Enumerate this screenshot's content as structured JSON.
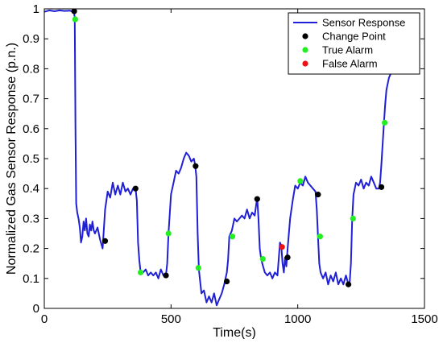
{
  "chart_data": {
    "type": "line",
    "title": "",
    "xlabel": "Time(s)",
    "ylabel": "Normalized Gas Sensor Response (p.n.)",
    "xlim": [
      0,
      1500
    ],
    "ylim": [
      0,
      1
    ],
    "xticks": [
      0,
      500,
      1000,
      1500
    ],
    "yticks": [
      0,
      0.1,
      0.2,
      0.3,
      0.4,
      0.5,
      0.6,
      0.7,
      0.8,
      0.9,
      1
    ],
    "grid": false,
    "legend_position": "top-right",
    "legend": [
      {
        "label": "Sensor Response",
        "kind": "line",
        "color": "#1f1fd6"
      },
      {
        "label": "Change Point",
        "kind": "marker",
        "color": "#000000"
      },
      {
        "label": "True Alarm",
        "kind": "marker",
        "color": "#22ee22"
      },
      {
        "label": "False Alarm",
        "kind": "marker",
        "color": "#ee1111"
      }
    ],
    "series": [
      {
        "name": "Sensor Response",
        "color": "#1f1fd6",
        "x": [
          0,
          20,
          40,
          60,
          80,
          100,
          115,
          118,
          120,
          123,
          126,
          130,
          135,
          140,
          145,
          150,
          155,
          160,
          165,
          170,
          175,
          180,
          185,
          190,
          195,
          200,
          210,
          220,
          230,
          240,
          250,
          260,
          270,
          280,
          290,
          300,
          310,
          320,
          330,
          340,
          350,
          360,
          365,
          370,
          375,
          380,
          390,
          400,
          410,
          420,
          430,
          440,
          450,
          460,
          470,
          480,
          485,
          490,
          500,
          510,
          520,
          530,
          540,
          550,
          560,
          570,
          580,
          590,
          595,
          600,
          605,
          610,
          620,
          630,
          640,
          650,
          660,
          670,
          680,
          690,
          700,
          710,
          715,
          720,
          725,
          730,
          740,
          750,
          760,
          770,
          780,
          790,
          800,
          810,
          820,
          830,
          840,
          845,
          850,
          855,
          860,
          870,
          880,
          890,
          900,
          910,
          920,
          930,
          935,
          940,
          945,
          950,
          955,
          960,
          970,
          980,
          990,
          1000,
          1010,
          1020,
          1030,
          1040,
          1050,
          1060,
          1070,
          1075,
          1080,
          1085,
          1090,
          1100,
          1110,
          1120,
          1130,
          1140,
          1150,
          1160,
          1170,
          1180,
          1190,
          1200,
          1205,
          1210,
          1215,
          1220,
          1230,
          1240,
          1250,
          1260,
          1270,
          1280,
          1290,
          1300,
          1310,
          1320,
          1325,
          1330,
          1335,
          1340,
          1345,
          1350,
          1360,
          1370,
          1380,
          1385
        ],
        "y": [
          0.99,
          0.995,
          0.992,
          0.995,
          0.993,
          0.994,
          0.99,
          0.985,
          0.97,
          0.6,
          0.35,
          0.32,
          0.3,
          0.27,
          0.22,
          0.24,
          0.29,
          0.26,
          0.3,
          0.25,
          0.24,
          0.28,
          0.26,
          0.29,
          0.26,
          0.25,
          0.27,
          0.23,
          0.2,
          0.33,
          0.39,
          0.37,
          0.42,
          0.38,
          0.41,
          0.38,
          0.42,
          0.39,
          0.4,
          0.38,
          0.4,
          0.4,
          0.36,
          0.22,
          0.16,
          0.12,
          0.12,
          0.13,
          0.11,
          0.12,
          0.11,
          0.12,
          0.1,
          0.13,
          0.11,
          0.11,
          0.15,
          0.25,
          0.38,
          0.42,
          0.46,
          0.45,
          0.47,
          0.5,
          0.52,
          0.51,
          0.49,
          0.5,
          0.48,
          0.44,
          0.25,
          0.13,
          0.05,
          0.06,
          0.02,
          0.04,
          0.02,
          0.05,
          0.01,
          0.03,
          0.05,
          0.08,
          0.1,
          0.12,
          0.16,
          0.24,
          0.26,
          0.3,
          0.29,
          0.3,
          0.31,
          0.3,
          0.33,
          0.3,
          0.32,
          0.31,
          0.37,
          0.3,
          0.2,
          0.17,
          0.15,
          0.12,
          0.11,
          0.12,
          0.1,
          0.12,
          0.11,
          0.22,
          0.21,
          0.15,
          0.12,
          0.17,
          0.14,
          0.2,
          0.3,
          0.36,
          0.41,
          0.4,
          0.42,
          0.41,
          0.44,
          0.42,
          0.41,
          0.4,
          0.39,
          0.33,
          0.24,
          0.15,
          0.12,
          0.1,
          0.12,
          0.08,
          0.11,
          0.09,
          0.12,
          0.08,
          0.1,
          0.08,
          0.11,
          0.08,
          0.09,
          0.15,
          0.3,
          0.38,
          0.42,
          0.41,
          0.43,
          0.4,
          0.42,
          0.41,
          0.44,
          0.42,
          0.4,
          0.4,
          0.42,
          0.48,
          0.55,
          0.62,
          0.68,
          0.73,
          0.77,
          0.79,
          0.8,
          0.8
        ]
      },
      {
        "name": "Change Point",
        "color": "#000000",
        "x": [
          118,
          240,
          360,
          480,
          597,
          720,
          840,
          960,
          1080,
          1200,
          1330
        ],
        "y": [
          0.992,
          0.225,
          0.4,
          0.11,
          0.475,
          0.09,
          0.365,
          0.17,
          0.38,
          0.08,
          0.405
        ]
      },
      {
        "name": "True Alarm",
        "color": "#22ee22",
        "x": [
          122,
          380,
          490,
          608,
          742,
          862,
          1010,
          1088,
          1218,
          1343
        ],
        "y": [
          0.965,
          0.12,
          0.25,
          0.135,
          0.24,
          0.165,
          0.425,
          0.24,
          0.3,
          0.62
        ]
      },
      {
        "name": "False Alarm",
        "color": "#ee1111",
        "x": [
          938
        ],
        "y": [
          0.205
        ]
      }
    ]
  }
}
